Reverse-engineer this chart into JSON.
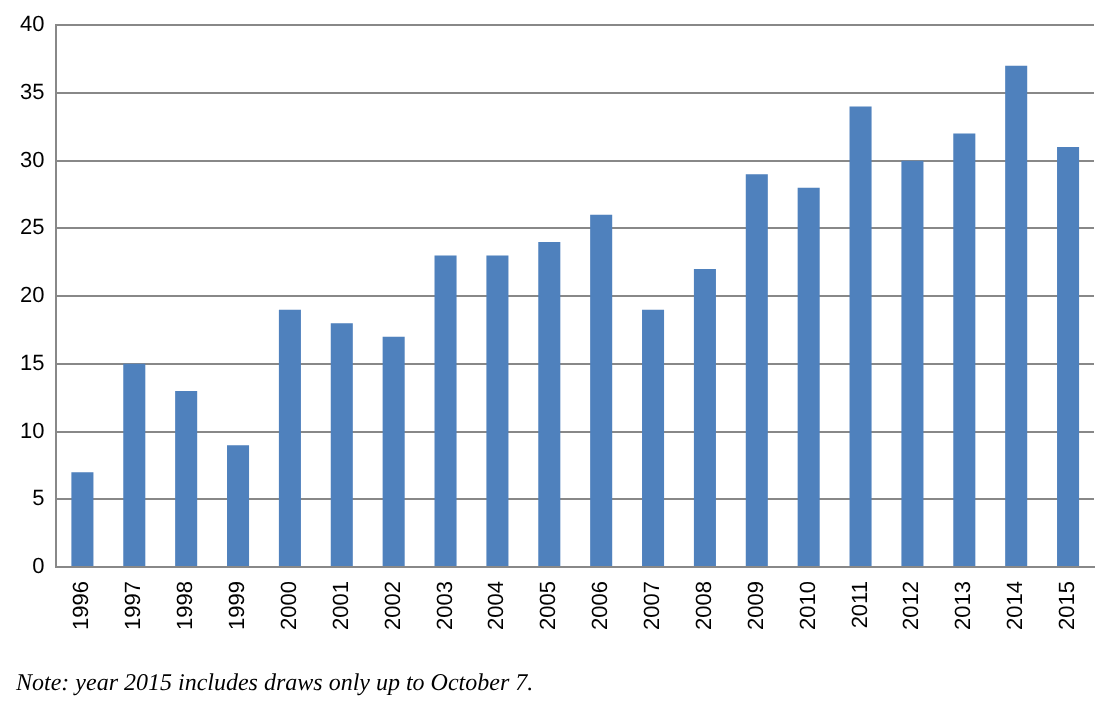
{
  "chart_data": {
    "type": "bar",
    "categories": [
      "1996",
      "1997",
      "1998",
      "1999",
      "2000",
      "2001",
      "2002",
      "2003",
      "2004",
      "2005",
      "2006",
      "2007",
      "2008",
      "2009",
      "2010",
      "2011",
      "2012",
      "2013",
      "2014",
      "2015"
    ],
    "values": [
      7,
      15,
      13,
      9,
      19,
      18,
      17,
      23,
      23,
      24,
      26,
      19,
      22,
      29,
      28,
      34,
      30,
      32,
      37,
      31
    ],
    "color": "#4f81bd",
    "ylim": [
      0,
      40
    ],
    "yticks": [
      0,
      5,
      10,
      15,
      20,
      25,
      30,
      35,
      40
    ],
    "grid": "y",
    "legend": false,
    "annotations": [
      "Note: year 2015 includes draws only up to October 7."
    ]
  }
}
